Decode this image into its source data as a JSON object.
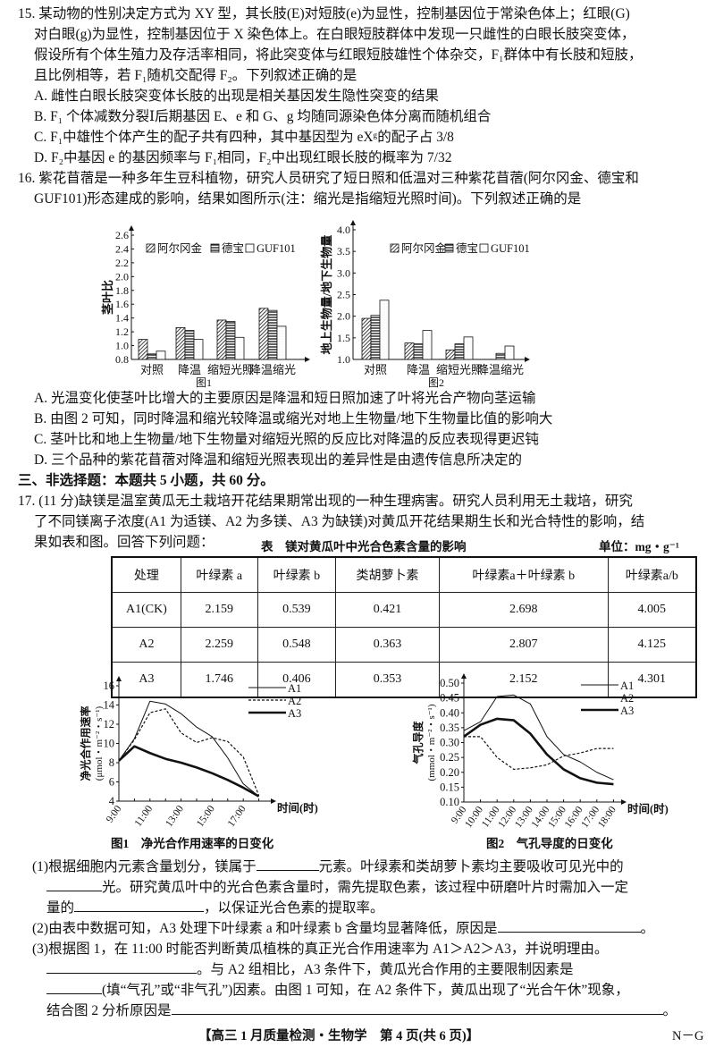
{
  "q15": {
    "lines": [
      "15. 某动物的性别决定方式为 XY 型，其长肢(E)对短肢(e)为显性，控制基因位于常染色体上；红眼(G)",
      "对白眼(g)为显性，控制基因位于 X 染色体上。在白眼短肢群体中发现一只雌性的白眼长肢突变体，",
      "假设所有个体生殖力及存活率相同，将此突变体与红眼短肢雄性个体杂交，F₁群体中有长肢和短肢，",
      "且比例相等，若 F₁随机交配得 F₂。下列叙述正确的是"
    ],
    "options": [
      "A. 雌性白眼长肢突变体长肢的出现是相关基因发生隐性突变的结果",
      "B. F₁ 个体减数分裂Ⅰ后期基因 E、e 和 G、g 均随同源染色体分离而随机组合",
      "C. F₁中雄性个体产生的配子共有四种，其中基因型为 eXᵍ的配子占 3/8",
      "D. F₂中基因 e 的基因频率与 F₁相同，F₂中出现红眼长肢的概率为 7/32"
    ]
  },
  "q16": {
    "lines": [
      "16. 紫花苜蓿是一种多年生豆科植物，研究人员研究了短日照和低温对三种紫花苜蓿(阿尔冈金、德宝和",
      "GUF101)形态建成的影响，结果如图所示(注：缩光是指缩短光照时间)。下列叙述正确的是"
    ],
    "options": [
      "A. 光温变化使茎叶比增大的主要原因是降温和短日照加速了叶将光合产物向茎运输",
      "B. 由图 2 可知，同时降温和缩光较降温或缩光对地上生物量/地下生物量比值的影响大",
      "C. 茎叶比和地上生物量/地下生物量对缩短光照的反应比对降温的反应表现得更迟钝",
      "D. 三个品种的紫花苜蓿对降温和缩短光照表现出的差异性是由遗传信息所决定的"
    ]
  },
  "section3": "三、非选择题：本题共 5 小题，共 60 分。",
  "q17": {
    "lines": [
      "17. (11 分)缺镁是温室黄瓜无土栽培开花结果期常出现的一种生理病害。研究人员利用无土栽培，研究",
      "了不同镁离子浓度(A1 为适镁、A2 为多镁、A3 为缺镁)对黄瓜开花结果期生长和光合特性的影响，结",
      "果如表和图。回答下列问题："
    ],
    "table": {
      "caption": "表　镁对黄瓜叶中光合色素含量的影响",
      "unit": "单位：mg・g⁻¹",
      "headers": [
        "处理",
        "叶绿素 a",
        "叶绿素 b",
        "类胡萝卜素",
        "叶绿素a＋叶绿素 b",
        "叶绿素a/b"
      ],
      "rows": [
        [
          "A1(CK)",
          "2.159",
          "0.539",
          "0.421",
          "2.698",
          "4.005"
        ],
        [
          "A2",
          "2.259",
          "0.548",
          "0.363",
          "2.807",
          "4.125"
        ],
        [
          "A3",
          "1.746",
          "0.406",
          "0.353",
          "2.152",
          "4.301"
        ]
      ]
    },
    "q1": [
      "(1)根据细胞内元素含量划分，镁属于",
      "元素。叶绿素和类胡萝卜素均主要吸收可见光中的",
      "光。研究黄瓜叶中的光合色素含量时，需先提取色素，该过程中研磨叶片时需加入一定",
      "量的",
      "，以保证光合色素的提取率。"
    ],
    "q2": [
      "(2)由表中数据可知，A3 处理下叶绿素 a 和叶绿素 b 含量均显著降低，原因是",
      "。"
    ],
    "q3": [
      "(3)根据图 1，在 11:00 时能否判断黄瓜植株的真正光合作用速率为 A1＞A2＞A3，并说明理由。",
      "。与 A2 组相比，A3 条件下，黄瓜光合作用的主要限制因素是",
      "(填“气孔”或“非气孔”)因素。由图 1 可知，在 A2 条件下，黄瓜出现了“光合午休”现象，",
      "结合图 2 分析原因是",
      "。"
    ]
  },
  "footer": {
    "center": "【高三 1 月质量检测・生物学　第 4 页(共 6 页)】",
    "right": "N－G"
  },
  "chart_data": [
    {
      "type": "bar",
      "title": "图1",
      "ylabel": "茎叶比",
      "ylim": [
        0.8,
        2.6
      ],
      "yticks": [
        "0.8",
        "1.0",
        "1.2",
        "1.4",
        "1.6",
        "1.8",
        "2.0",
        "2.2",
        "2.4",
        "2.6"
      ],
      "categories": [
        "对照",
        "降温",
        "缩短光照",
        "降温缩光"
      ],
      "series": [
        {
          "name": "阿尔冈金",
          "values": [
            1.09,
            1.26,
            1.37,
            1.54
          ]
        },
        {
          "name": "德宝",
          "values": [
            0.88,
            1.22,
            1.35,
            1.51
          ]
        },
        {
          "name": "GUF101",
          "values": [
            0.92,
            1.09,
            1.12,
            1.28
          ]
        }
      ],
      "legend": "top"
    },
    {
      "type": "bar",
      "title": "图2",
      "ylabel": "地上生物量/地下生物量",
      "ylim": [
        1.0,
        4.0
      ],
      "yticks": [
        "1.0",
        "1.5",
        "2.0",
        "2.5",
        "3.0",
        "3.5",
        "4.0"
      ],
      "categories": [
        "对照",
        "降温",
        "缩短光照",
        "降温缩光"
      ],
      "series": [
        {
          "name": "阿尔冈金",
          "values": [
            1.95,
            1.38,
            1.22,
            1.0
          ]
        },
        {
          "name": "德宝",
          "values": [
            2.02,
            1.36,
            1.36,
            1.14
          ]
        },
        {
          "name": "GUF101",
          "values": [
            2.37,
            1.67,
            1.52,
            1.31
          ]
        }
      ],
      "legend": "top"
    },
    {
      "type": "line",
      "title": "图1　净光合作用速率的日变化",
      "ylabel": "净光合作用速率",
      "yunit": "(μmol・m⁻²・s⁻¹)",
      "xlabel": "时间(时)",
      "ylim": [
        4,
        16
      ],
      "yticks": [
        "4",
        "6",
        "8",
        "10",
        "12",
        "14",
        "16"
      ],
      "x": [
        9,
        10,
        11,
        12,
        13,
        14,
        15,
        16,
        17,
        18
      ],
      "xticks": [
        "9:00",
        "11:00",
        "13:00",
        "15:00",
        "17:00"
      ],
      "xtick_values": [
        9,
        11,
        13,
        15,
        17
      ],
      "series": [
        {
          "name": "A1",
          "style": "solid",
          "values": [
            8.2,
            10.5,
            14.4,
            14.1,
            13.1,
            11.7,
            10.7,
            8.5,
            5.8,
            4.5
          ]
        },
        {
          "name": "A2",
          "style": "dashed",
          "values": [
            8.2,
            10.4,
            13.2,
            13.6,
            11.1,
            10.1,
            10.6,
            10.2,
            8.6,
            4.6
          ]
        },
        {
          "name": "A3",
          "style": "thick",
          "values": [
            8.2,
            9.7,
            9.0,
            8.4,
            8.0,
            7.5,
            6.9,
            6.2,
            5.4,
            4.5
          ]
        }
      ],
      "legend": "top-right"
    },
    {
      "type": "line",
      "title": "图2　气孔导度的日变化",
      "ylabel": "气孔导度",
      "yunit": "(mmol・m⁻²・s⁻¹)",
      "xlabel": "时间(时)",
      "ylim": [
        0.1,
        0.5
      ],
      "yticks": [
        "0.10",
        "0.15",
        "0.20",
        "0.25",
        "0.30",
        "0.35",
        "0.40",
        "0.45",
        "0.50"
      ],
      "x": [
        9,
        10,
        11,
        12,
        13,
        14,
        15,
        16,
        17,
        18
      ],
      "xticks": [
        "9:00",
        "10:00",
        "11:00",
        "12:00",
        "13:00",
        "14:00",
        "15:00",
        "16:00",
        "17:00",
        "18:00"
      ],
      "xtick_values": [
        9,
        10,
        11,
        12,
        13,
        14,
        15,
        16,
        17,
        18
      ],
      "series": [
        {
          "name": "A1",
          "style": "solid",
          "values": [
            0.34,
            0.37,
            0.455,
            0.46,
            0.43,
            0.32,
            0.26,
            0.235,
            0.2,
            0.175
          ]
        },
        {
          "name": "A2",
          "style": "dashed",
          "values": [
            0.32,
            0.32,
            0.25,
            0.21,
            0.215,
            0.225,
            0.255,
            0.265,
            0.28,
            0.28
          ]
        },
        {
          "name": "A3",
          "style": "thick",
          "values": [
            0.32,
            0.36,
            0.38,
            0.375,
            0.33,
            0.26,
            0.21,
            0.18,
            0.165,
            0.16
          ]
        }
      ],
      "legend": "top-right"
    }
  ]
}
